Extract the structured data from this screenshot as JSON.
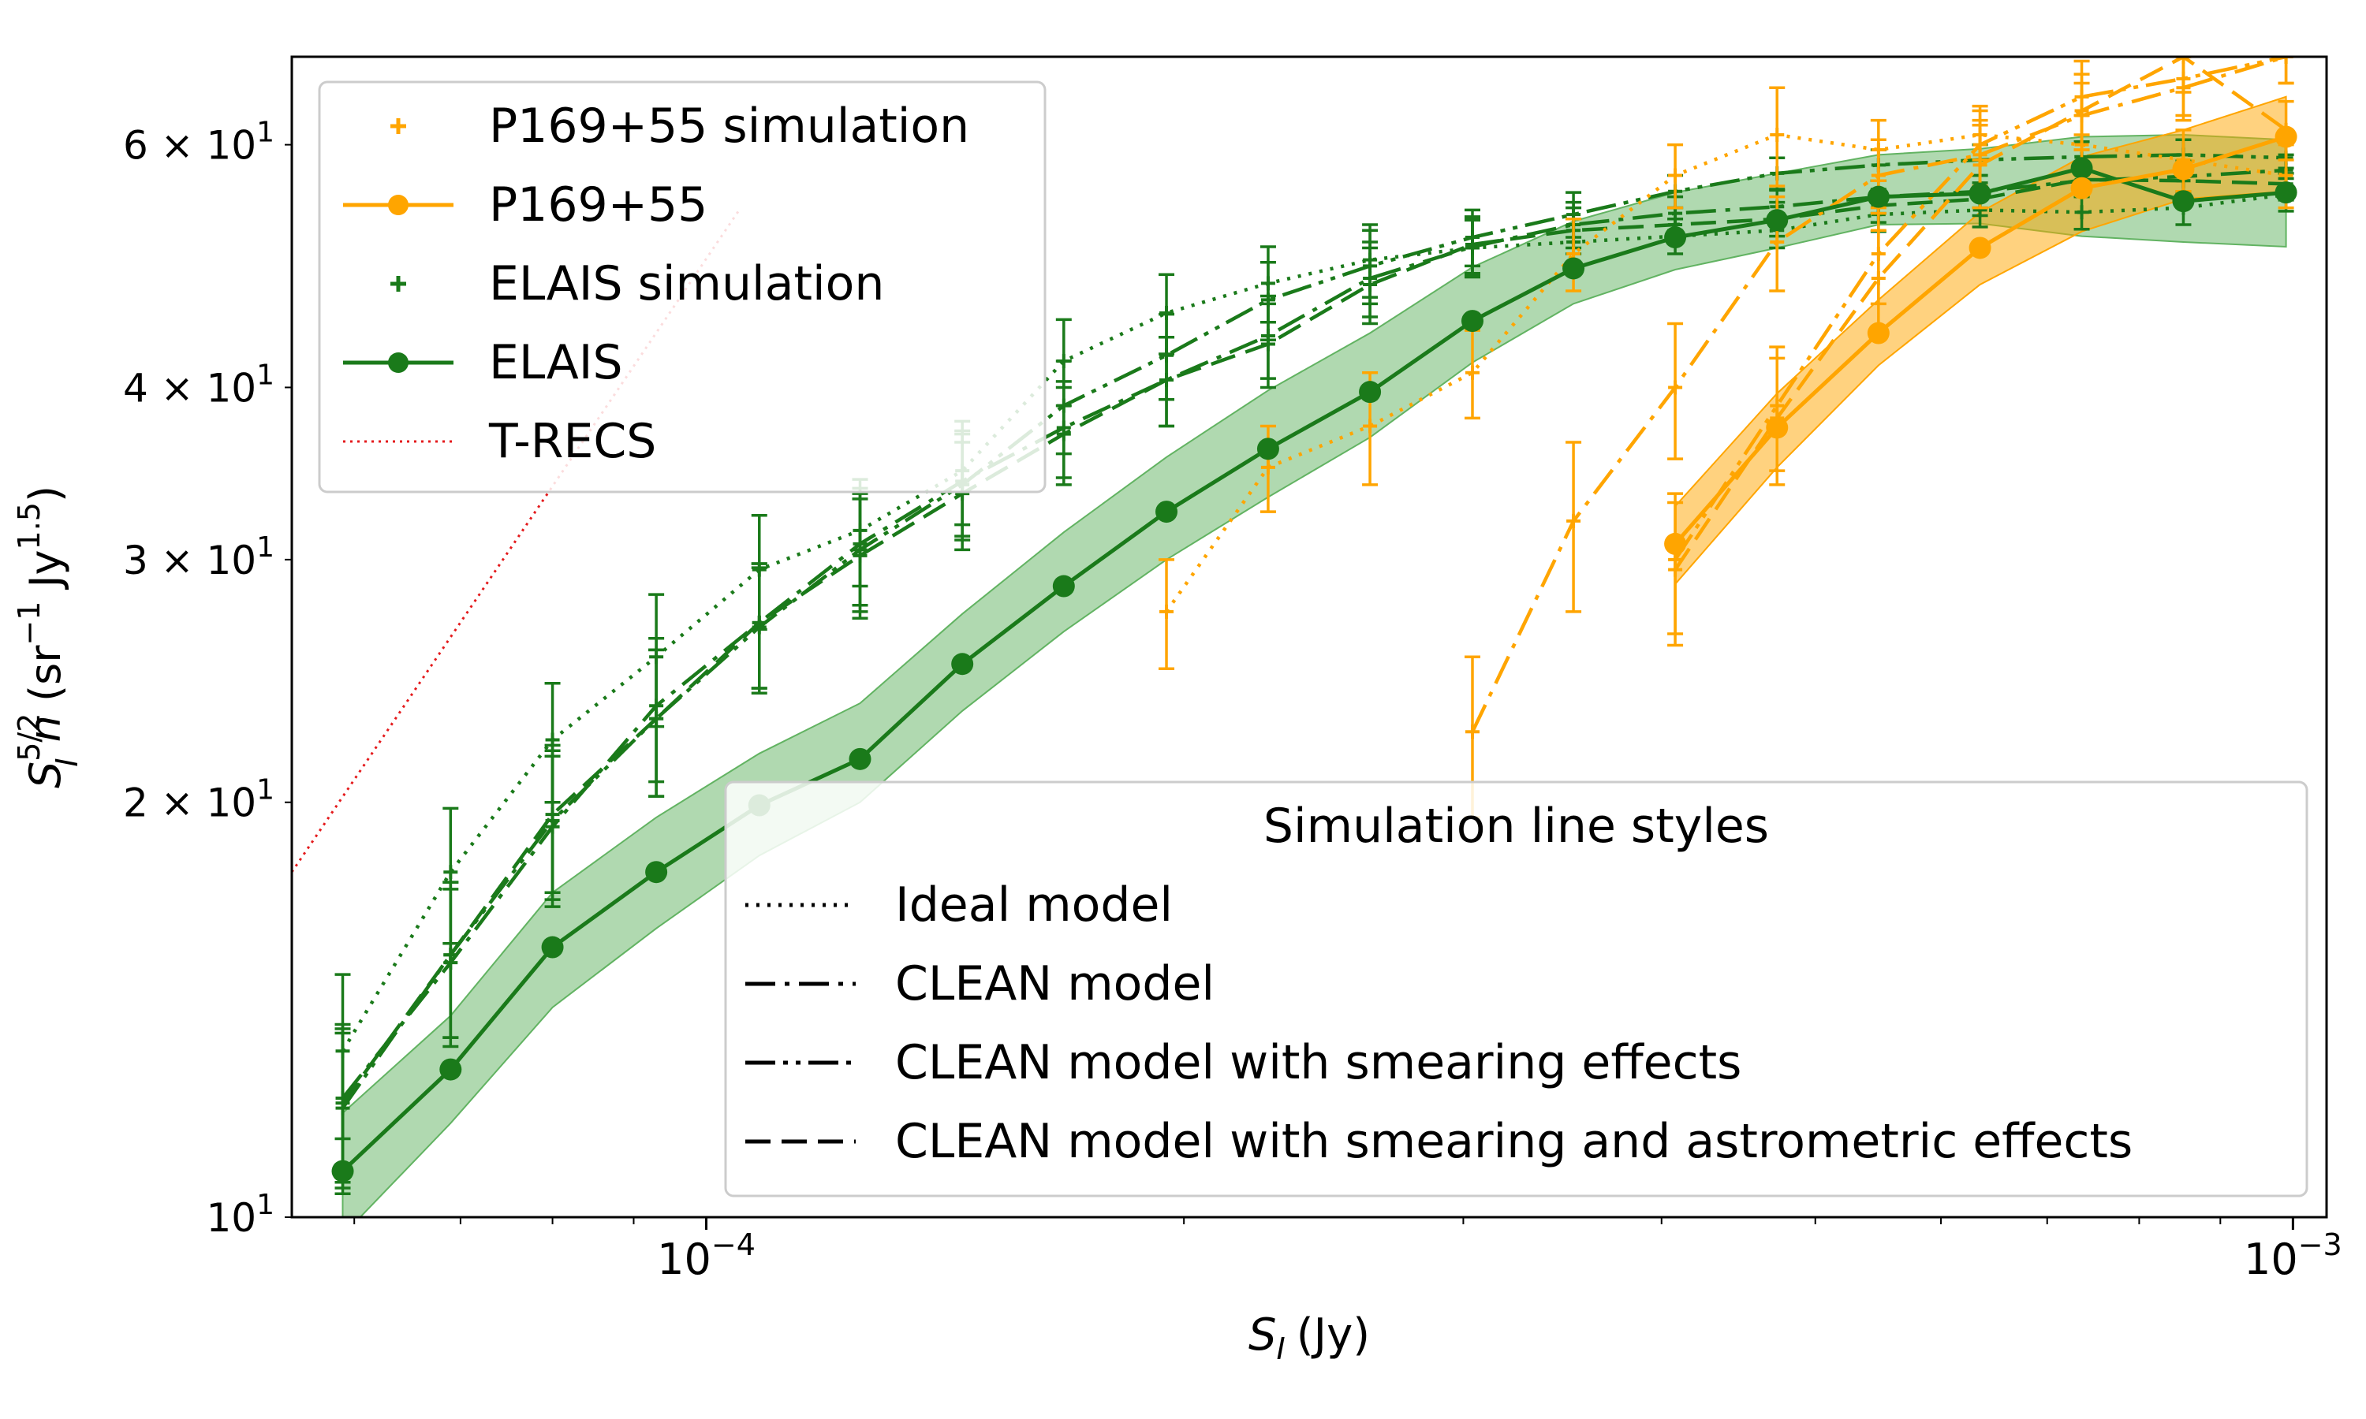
{
  "chart_data": {
    "type": "line",
    "x_scale": "log",
    "y_scale": "log",
    "xlabel_base": "S",
    "xlabel_sub": "I",
    "xlabel_unit": "(Jy)",
    "ylabel": "S_I^{5/2} n (sr^-1 Jy^1.5)",
    "ylabel_parts": {
      "base": "S",
      "sup": "5/2",
      "sub": "I",
      "mid": " n (sr",
      "sup2": "−1",
      "mid2": " Jy",
      "sup3": "1.5",
      "end": ")"
    },
    "xlim": [
      5.48e-05,
      0.00105
    ],
    "ylim": [
      10,
      69.5
    ],
    "x_ticks": [
      {
        "value": 0.0001,
        "base": "10",
        "exp": "−4"
      },
      {
        "value": 0.001,
        "base": "10",
        "exp": "−3"
      }
    ],
    "y_ticks": [
      {
        "value": 10,
        "base": "10",
        "exp": "1",
        "prefix": ""
      },
      {
        "value": 20,
        "base": "10",
        "exp": "1",
        "prefix": "2 × "
      },
      {
        "value": 30,
        "base": "10",
        "exp": "1",
        "prefix": "3 × "
      },
      {
        "value": 40,
        "base": "10",
        "exp": "1",
        "prefix": "4 × "
      },
      {
        "value": 60,
        "base": "10",
        "exp": "1",
        "prefix": "6 × "
      }
    ],
    "colors": {
      "elais": "#1a7a1a",
      "elais_band": "#62b362",
      "p169": "#ffa500",
      "trecs": "#e41a1c"
    },
    "series": [
      {
        "name": "ELAIS",
        "color": "#1a7a1a",
        "x": [
          5.9e-05,
          6.9e-05,
          8e-05,
          9.3e-05,
          0.000108,
          0.000125,
          0.000145,
          0.000168,
          0.000195,
          0.000226,
          0.000262,
          0.000304,
          0.000352,
          0.000408,
          0.000473,
          0.000548,
          0.000635,
          0.000736,
          0.000853,
          0.00099
        ],
        "y": [
          10.8,
          12.8,
          15.7,
          17.8,
          19.9,
          21.5,
          25.2,
          28.7,
          32.5,
          36.1,
          39.7,
          44.7,
          48.8,
          51.4,
          52.9,
          55.0,
          55.3,
          57.7,
          54.6,
          55.4
        ],
        "band_lower": [
          9.7,
          11.7,
          14.2,
          16.2,
          18.3,
          20.0,
          23.3,
          26.6,
          30.0,
          33.3,
          36.8,
          41.7,
          46.0,
          48.7,
          50.5,
          52.5,
          52.6,
          51.5,
          51.0,
          50.6
        ],
        "band_upper": [
          11.9,
          14.0,
          17.2,
          19.5,
          21.7,
          23.6,
          27.4,
          31.4,
          35.6,
          39.8,
          43.8,
          48.9,
          52.8,
          55.4,
          57.2,
          59.0,
          59.6,
          60.8,
          61.0,
          60.5
        ]
      },
      {
        "name": "P169+55",
        "color": "#ffa500",
        "x": [
          0.000408,
          0.000473,
          0.000548,
          0.000635,
          0.000736,
          0.000853,
          0.00099
        ],
        "y": [
          30.8,
          37.4,
          43.8,
          50.5,
          55.8,
          57.6,
          60.8
        ],
        "band_lower": [
          28.8,
          35.0,
          41.5,
          47.5,
          51.9,
          54.8,
          55.5
        ],
        "band_upper": [
          32.8,
          39.6,
          46.3,
          53.6,
          58.8,
          61.5,
          65.0
        ]
      },
      {
        "name": "T-RECS",
        "color": "#e41a1c",
        "x": [
          5.48e-05,
          0.000105
        ],
        "y": [
          17.8,
          53.9
        ]
      },
      {
        "name": "ELAIS simulation",
        "color": "#1a7a1a",
        "style": "dotted",
        "x": [
          5.9e-05,
          6.9e-05,
          8e-05,
          9.3e-05,
          0.000108,
          0.000125,
          0.000145,
          0.000168,
          0.000195,
          0.000226,
          0.000262,
          0.000304,
          0.000352,
          0.000408,
          0.000473,
          0.000548,
          0.000635,
          0.000736,
          0.000853,
          0.00099
        ],
        "y": [
          13.2,
          17.8,
          22.2,
          25.5,
          29.5,
          31.5,
          34.8,
          41.8,
          45.3,
          47.6,
          49.5,
          50.5,
          51.0,
          51.5,
          52.0,
          53.4,
          53.8,
          53.6,
          54.0,
          55.2
        ],
        "err": [
          1.8,
          2.0,
          2.2,
          2.8,
          2.8,
          2.8,
          3.0,
          3.0,
          3.0,
          3.0,
          3.0,
          2.4,
          2.0,
          1.5,
          1.5,
          1.5,
          1.5,
          1.5,
          1.5,
          1.5
        ]
      },
      {
        "name": "ELAIS simulation",
        "color": "#1a7a1a",
        "style": "dashdot",
        "x": [
          5.9e-05,
          6.9e-05,
          8e-05,
          9.3e-05,
          0.000108,
          0.000125,
          0.000145,
          0.000168,
          0.000195,
          0.000226,
          0.000262,
          0.000304,
          0.000352,
          0.000408,
          0.000473,
          0.000548,
          0.000635,
          0.000736,
          0.000853,
          0.00099
        ],
        "y": [
          12.2,
          15.3,
          19.2,
          23.5,
          27.0,
          30.8,
          34.2,
          37.4,
          40.5,
          43.6,
          48.0,
          50.6,
          52.5,
          53.5,
          54.1,
          55.0,
          55.5,
          56.5,
          56.9,
          57.5
        ],
        "err": [
          1.6,
          2.0,
          2.4,
          2.8,
          2.8,
          3.0,
          3.0,
          3.0,
          3.0,
          3.0,
          3.0,
          2.4,
          2.0,
          1.5,
          1.5,
          1.5,
          1.5,
          1.5,
          1.5,
          1.5
        ]
      },
      {
        "name": "ELAIS simulation",
        "color": "#1a7a1a",
        "style": "dashdotdot",
        "x": [
          5.9e-05,
          6.9e-05,
          8e-05,
          9.3e-05,
          0.000108,
          0.000125,
          0.000145,
          0.000168,
          0.000195,
          0.000226,
          0.000262,
          0.000304,
          0.000352,
          0.000408,
          0.000473,
          0.000548,
          0.000635,
          0.000736,
          0.000853,
          0.00099
        ],
        "y": [
          12.0,
          15.5,
          19.4,
          23.0,
          26.8,
          30.5,
          34.0,
          38.8,
          42.2,
          46.3,
          49.0,
          51.4,
          53.4,
          55.5,
          57.2,
          58.0,
          58.5,
          58.8,
          59.0,
          58.7
        ],
        "err": [
          1.6,
          2.0,
          2.4,
          2.8,
          2.8,
          3.0,
          3.0,
          3.0,
          3.0,
          3.0,
          3.0,
          2.4,
          2.0,
          1.5,
          1.5,
          1.5,
          1.5,
          1.5,
          1.5,
          1.5
        ]
      },
      {
        "name": "ELAIS simulation",
        "color": "#1a7a1a",
        "style": "dashed",
        "x": [
          5.9e-05,
          6.9e-05,
          8e-05,
          9.3e-05,
          0.000108,
          0.000125,
          0.000145,
          0.000168,
          0.000195,
          0.000226,
          0.000262,
          0.000304,
          0.000352,
          0.000408,
          0.000473,
          0.000548,
          0.000635,
          0.000736,
          0.000853,
          0.00099
        ],
        "y": [
          12.1,
          15.5,
          19.6,
          23.0,
          27.0,
          30.2,
          33.5,
          37.0,
          40.5,
          43.0,
          47.5,
          50.8,
          52.0,
          52.5,
          53.0,
          54.2,
          54.8,
          56.6,
          56.5,
          56.2
        ],
        "err": [
          1.6,
          2.0,
          2.4,
          2.8,
          2.8,
          3.0,
          3.0,
          3.0,
          3.0,
          3.0,
          3.0,
          2.4,
          2.0,
          1.5,
          1.5,
          1.5,
          1.5,
          1.5,
          1.5,
          1.5
        ]
      },
      {
        "name": "P169+55 simulation",
        "color": "#ffa500",
        "style": "dotted",
        "x": [
          0.000195,
          0.000226,
          0.000262,
          0.000304,
          0.000352,
          0.000408,
          0.000473,
          0.000548,
          0.000635,
          0.000736,
          0.000853,
          0.00099
        ],
        "y": [
          27.5,
          35.0,
          37.5,
          41.0,
          50.0,
          57.0,
          61.0,
          59.5,
          61.0,
          60.0,
          58.5,
          57.0
        ],
        "err": [
          2.5,
          2.5,
          3.5,
          3.0,
          3.0,
          3.0,
          5.0,
          3.0,
          2.5,
          3.0,
          3.0,
          3.0
        ]
      },
      {
        "name": "P169+55 simulation",
        "color": "#ffa500",
        "style": "dashdot",
        "x": [
          0.000304,
          0.000352,
          0.000408,
          0.000473,
          0.000548,
          0.000635,
          0.000736,
          0.000853,
          0.00099
        ],
        "y": [
          22.5,
          32.0,
          40.0,
          51.0,
          57.0,
          59.0,
          63.0,
          66.0,
          69.5
        ],
        "err": [
          3.0,
          4.5,
          4.5,
          4.0,
          3.5,
          3.5,
          3.5,
          3.5,
          3.0
        ]
      },
      {
        "name": "P169+55 simulation",
        "color": "#ffa500",
        "style": "dashdotdot",
        "x": [
          0.000408,
          0.000473,
          0.000548,
          0.000635,
          0.000736,
          0.000853,
          0.00099
        ],
        "y": [
          30.0,
          38.8,
          50.0,
          60.0,
          65.0,
          67.0,
          69.5
        ],
        "err": [
          3.5,
          4.0,
          4.0,
          4.0,
          4.0,
          4.0,
          3.0
        ]
      },
      {
        "name": "P169+55 simulation",
        "color": "#ffa500",
        "style": "dashed",
        "x": [
          0.000408,
          0.000473,
          0.000548,
          0.000635,
          0.000736,
          0.000853,
          0.00099
        ],
        "y": [
          29.5,
          38.0,
          48.0,
          58.0,
          63.5,
          69.5,
          61.5
        ],
        "err": [
          3.5,
          4.0,
          4.0,
          4.0,
          4.0,
          4.0,
          3.0
        ]
      }
    ],
    "legend_main": {
      "placement": "upper-left",
      "entries": [
        {
          "label": "P169+55 simulation",
          "kind": "plus",
          "color": "#ffa500"
        },
        {
          "label": "P169+55",
          "kind": "line-dot",
          "color": "#ffa500"
        },
        {
          "label": "ELAIS simulation",
          "kind": "plus",
          "color": "#1a7a1a"
        },
        {
          "label": "ELAIS",
          "kind": "line-dot",
          "color": "#1a7a1a"
        },
        {
          "label": "T-RECS",
          "kind": "dotted",
          "color": "#e41a1c"
        }
      ]
    },
    "legend_styles": {
      "placement": "lower-right",
      "title": "Simulation line styles",
      "entries": [
        {
          "label": "Ideal model",
          "style": "dotted"
        },
        {
          "label": "CLEAN model",
          "style": "dashdot"
        },
        {
          "label": "CLEAN model with smearing effects",
          "style": "dashdotdot"
        },
        {
          "label": "CLEAN model with smearing and astrometric effects",
          "style": "dashed"
        }
      ]
    }
  }
}
